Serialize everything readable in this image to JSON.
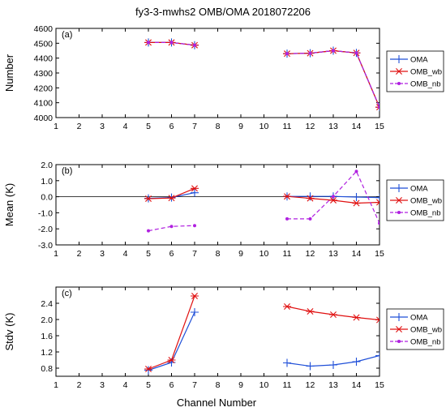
{
  "title": "fy3-3-mwhs2   OMB/OMA   2018072206",
  "xlabel": "Channel Number",
  "chart_data": [
    {
      "type": "line",
      "panel": "(a)",
      "ylabel": "Number",
      "xlim": [
        1,
        15
      ],
      "ylim": [
        4000,
        4600
      ],
      "x_ticks": [
        1,
        2,
        3,
        4,
        5,
        6,
        7,
        8,
        9,
        10,
        11,
        12,
        13,
        14,
        15
      ],
      "y_ticks": [
        4000,
        4100,
        4200,
        4300,
        4400,
        4500,
        4600
      ],
      "y_tick_labels": [
        "4000",
        "4100",
        "4200",
        "4300",
        "4400",
        "4500",
        "4600"
      ],
      "zero_line": false,
      "legend_position": "right",
      "series": [
        {
          "name": "OMA",
          "color": "#1f4fd8",
          "marker": "plus",
          "dash": "solid",
          "segments": [
            [
              [
                5,
                4505
              ],
              [
                6,
                4505
              ],
              [
                7,
                4487
              ]
            ],
            [
              [
                11,
                4430
              ],
              [
                12,
                4433
              ],
              [
                13,
                4450
              ],
              [
                14,
                4435
              ],
              [
                15,
                4070
              ]
            ]
          ]
        },
        {
          "name": "OMB_wb",
          "color": "#e01010",
          "marker": "asterisk",
          "dash": "solid",
          "segments": [
            [
              [
                5,
                4505
              ],
              [
                6,
                4505
              ],
              [
                7,
                4487
              ]
            ],
            [
              [
                11,
                4430
              ],
              [
                12,
                4433
              ],
              [
                13,
                4450
              ],
              [
                14,
                4435
              ],
              [
                15,
                4070
              ]
            ]
          ]
        },
        {
          "name": "OMB_nb",
          "color": "#b020e0",
          "marker": "dot",
          "dash": "dashed",
          "segments": [
            [
              [
                5,
                4505
              ],
              [
                6,
                4505
              ],
              [
                7,
                4487
              ]
            ],
            [
              [
                11,
                4430
              ],
              [
                12,
                4433
              ],
              [
                13,
                4450
              ],
              [
                14,
                4435
              ],
              [
                15,
                4070
              ]
            ]
          ]
        }
      ]
    },
    {
      "type": "line",
      "panel": "(b)",
      "ylabel": "Mean (K)",
      "xlim": [
        1,
        15
      ],
      "ylim": [
        -3.0,
        2.0
      ],
      "x_ticks": [
        1,
        2,
        3,
        4,
        5,
        6,
        7,
        8,
        9,
        10,
        11,
        12,
        13,
        14,
        15
      ],
      "y_ticks": [
        -3.0,
        -2.0,
        -1.0,
        0.0,
        1.0,
        2.0
      ],
      "y_tick_labels": [
        "-3.0",
        "-2.0",
        "-1.0",
        "0.0",
        "1.0",
        "2.0"
      ],
      "zero_line": true,
      "legend_position": "right",
      "series": [
        {
          "name": "OMA",
          "color": "#1f4fd8",
          "marker": "plus",
          "dash": "solid",
          "segments": [
            [
              [
                5,
                -0.1
              ],
              [
                6,
                -0.05
              ],
              [
                7,
                0.25
              ]
            ],
            [
              [
                11,
                0.02
              ],
              [
                12,
                0.02
              ],
              [
                13,
                0.02
              ],
              [
                14,
                -0.02
              ],
              [
                15,
                -0.05
              ]
            ]
          ]
        },
        {
          "name": "OMB_wb",
          "color": "#e01010",
          "marker": "asterisk",
          "dash": "solid",
          "segments": [
            [
              [
                5,
                -0.12
              ],
              [
                6,
                -0.08
              ],
              [
                7,
                0.52
              ]
            ],
            [
              [
                11,
                0.02
              ],
              [
                12,
                -0.1
              ],
              [
                13,
                -0.22
              ],
              [
                14,
                -0.4
              ],
              [
                15,
                -0.35
              ]
            ]
          ]
        },
        {
          "name": "OMB_nb",
          "color": "#b020e0",
          "marker": "dot",
          "dash": "dashed",
          "segments": [
            [
              [
                5,
                -2.12
              ],
              [
                6,
                -1.85
              ],
              [
                7,
                -1.8
              ]
            ],
            [
              [
                11,
                -1.38
              ],
              [
                12,
                -1.38
              ],
              [
                13,
                0.02
              ],
              [
                14,
                1.58
              ],
              [
                15,
                -1.65
              ]
            ]
          ]
        }
      ]
    },
    {
      "type": "line",
      "panel": "(c)",
      "ylabel": "Stdv (K)",
      "xlim": [
        1,
        15
      ],
      "ylim": [
        0.6,
        2.8
      ],
      "x_ticks": [
        1,
        2,
        3,
        4,
        5,
        6,
        7,
        8,
        9,
        10,
        11,
        12,
        13,
        14,
        15
      ],
      "y_ticks": [
        0.8,
        1.2,
        1.6,
        2.0,
        2.4
      ],
      "y_tick_labels": [
        "0.8",
        "1.2",
        "1.6",
        "2.0",
        "2.4"
      ],
      "zero_line": false,
      "legend_position": "right",
      "series": [
        {
          "name": "OMA",
          "color": "#1f4fd8",
          "marker": "plus",
          "dash": "solid",
          "segments": [
            [
              [
                5,
                0.75
              ],
              [
                6,
                0.94
              ],
              [
                7,
                2.18
              ]
            ],
            [
              [
                11,
                0.93
              ],
              [
                12,
                0.85
              ],
              [
                13,
                0.88
              ],
              [
                14,
                0.96
              ],
              [
                15,
                1.11
              ]
            ]
          ]
        },
        {
          "name": "OMB_wb",
          "color": "#e01010",
          "marker": "asterisk",
          "dash": "solid",
          "segments": [
            [
              [
                5,
                0.78
              ],
              [
                6,
                1.0
              ],
              [
                7,
                2.58
              ]
            ],
            [
              [
                11,
                2.32
              ],
              [
                12,
                2.2
              ],
              [
                13,
                2.12
              ],
              [
                14,
                2.05
              ],
              [
                15,
                1.99
              ]
            ]
          ]
        },
        {
          "name": "OMB_nb",
          "color": "#b020e0",
          "marker": "dot",
          "dash": "dashed",
          "segments": []
        }
      ]
    }
  ]
}
